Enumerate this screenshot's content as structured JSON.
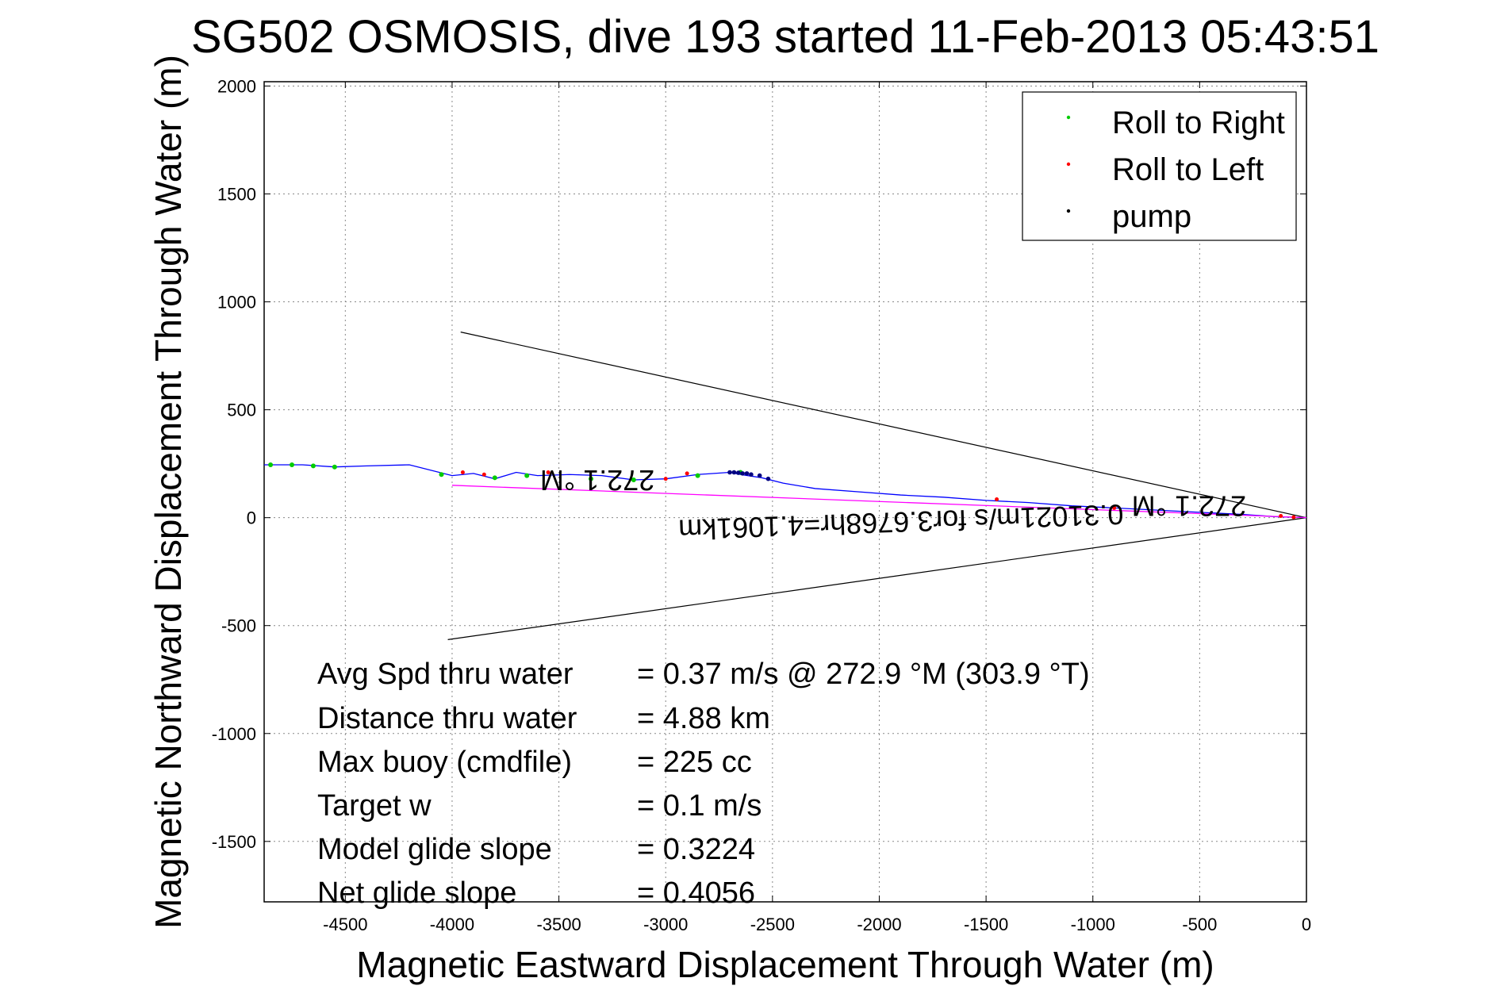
{
  "chart_data": {
    "type": "line",
    "title": "SG502 OSMOSIS, dive 193 started 11-Feb-2013 05:43:51",
    "xlabel": "Magnetic Eastward Displacement Through Water (m)",
    "ylabel": "Magnetic Northward Displacement Through Water (m)",
    "xlim": [
      -4880,
      0
    ],
    "ylim": [
      -1780,
      2020
    ],
    "xticks": [
      -4500,
      -4000,
      -3500,
      -3000,
      -2500,
      -2000,
      -1500,
      -1000,
      -500,
      0
    ],
    "yticks": [
      -1500,
      -1000,
      -500,
      0,
      500,
      1000,
      1500,
      2000
    ],
    "grid": true,
    "legend_position": "top-right",
    "legend": [
      {
        "label": "Roll to Right",
        "color": "#00cc00"
      },
      {
        "label": "Roll to Left",
        "color": "#ff0000"
      },
      {
        "label": "pump",
        "color": "#000000"
      }
    ],
    "series": [
      {
        "name": "track",
        "color": "#0000ff",
        "x": [
          0,
          -150,
          -300,
          -500,
          -700,
          -900,
          -1100,
          -1300,
          -1500,
          -1700,
          -1900,
          -2100,
          -2300,
          -2450,
          -2550,
          -2650,
          -2700,
          -2850,
          -3000,
          -3150,
          -3300,
          -3450,
          -3600,
          -3700,
          -3800,
          -3900,
          -4000,
          -4200,
          -4400,
          -4550,
          -4700,
          -4880
        ],
        "y": [
          0,
          5,
          15,
          25,
          35,
          45,
          55,
          70,
          80,
          95,
          105,
          120,
          135,
          160,
          185,
          200,
          210,
          200,
          180,
          175,
          195,
          200,
          195,
          210,
          180,
          205,
          195,
          245,
          240,
          235,
          245,
          245
        ]
      },
      {
        "name": "heading",
        "color": "#ff00ff",
        "x": [
          0,
          -4000
        ],
        "y": [
          0,
          150
        ]
      }
    ],
    "roll_right_points": {
      "x": [
        -3150,
        -3350,
        -3650,
        -3800,
        -4050,
        -4550,
        -4650,
        -4750,
        -4850,
        -2650,
        -2850
      ],
      "y": [
        175,
        180,
        195,
        185,
        200,
        235,
        240,
        245,
        245,
        210,
        195
      ]
    },
    "roll_left_points": {
      "x": [
        -60,
        -900,
        -1450,
        -3000,
        -3550,
        -3850,
        -3950,
        -2900,
        -120
      ],
      "y": [
        2,
        45,
        85,
        180,
        210,
        200,
        210,
        205,
        8
      ]
    },
    "pump_points": {
      "x": [
        -2600,
        -2620,
        -2640,
        -2660,
        -2680,
        -2700,
        -2560,
        -2520
      ],
      "y": [
        200,
        205,
        205,
        208,
        210,
        210,
        195,
        180
      ]
    },
    "current_lines": [
      {
        "x": [
          0,
          -3960
        ],
        "y": [
          0,
          860
        ]
      },
      {
        "x": [
          0,
          -4020
        ],
        "y": [
          0,
          -565
        ]
      }
    ],
    "annotations": [
      {
        "text": "272.1 °M",
        "x": -3320,
        "y": 220,
        "rotation": 180
      },
      {
        "text": "0.31021m/s for3.6768hr=4.1061km",
        "x": -1900,
        "y": 25,
        "rotation": 178
      },
      {
        "text": "272.1 °M",
        "x": -550,
        "y": 100,
        "rotation": 180
      }
    ]
  },
  "stats": [
    {
      "label": "Avg Spd thru water",
      "value": "=  0.37 m/s @ 272.9 °M (303.9 °T)"
    },
    {
      "label": "Distance thru water",
      "value": "=  4.88 km"
    },
    {
      "label": "Max buoy (cmdfile)",
      "value": "= 225 cc"
    },
    {
      "label": "Target w",
      "value": "= 0.1 m/s"
    },
    {
      "label": "Model glide slope",
      "value": "= 0.3224"
    },
    {
      "label": "Net glide slope",
      "value": "= 0.4056"
    }
  ]
}
